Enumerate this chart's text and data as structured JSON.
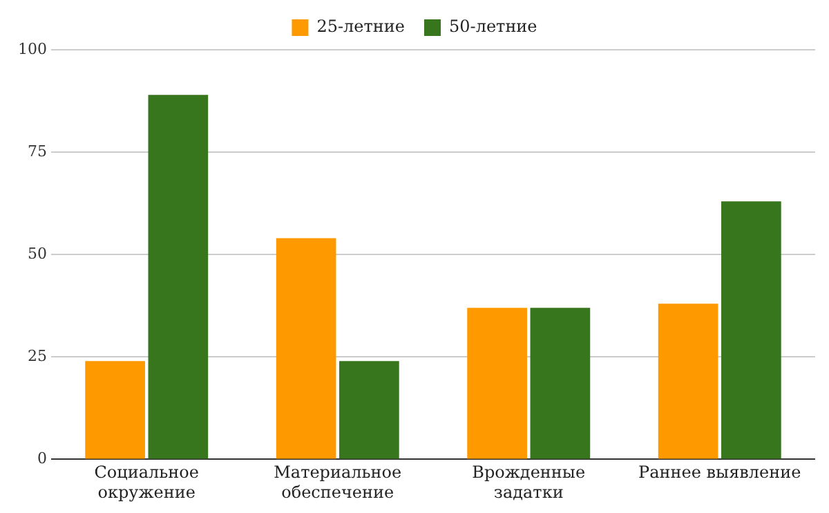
{
  "chart_data": {
    "type": "bar",
    "categories": [
      "Социальное окружение",
      "Материальное обеспечение",
      "Врожденные задатки",
      "Раннее выявление"
    ],
    "series": [
      {
        "name": "25-летние",
        "color": "#ff9900",
        "values": [
          24,
          54,
          37,
          38
        ]
      },
      {
        "name": "50-летние",
        "color": "#38761d",
        "values": [
          89,
          24,
          37,
          63
        ]
      }
    ],
    "ylim": [
      0,
      100
    ],
    "yticks": [
      0,
      25,
      50,
      75,
      100
    ],
    "grid": "y",
    "legend": "top"
  }
}
